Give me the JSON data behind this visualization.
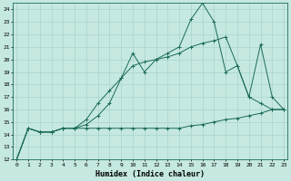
{
  "xlabel": "Humidex (Indice chaleur)",
  "background_color": "#c5e8e0",
  "grid_color": "#a8d4cc",
  "line_color": "#1a6b5a",
  "xlim": [
    -0.3,
    23.3
  ],
  "ylim": [
    12,
    24.5
  ],
  "xticks": [
    0,
    1,
    2,
    3,
    4,
    5,
    6,
    7,
    8,
    9,
    10,
    11,
    12,
    13,
    14,
    15,
    16,
    17,
    18,
    19,
    20,
    21,
    22,
    23
  ],
  "yticks": [
    12,
    13,
    14,
    15,
    16,
    17,
    18,
    19,
    20,
    21,
    22,
    23,
    24
  ],
  "series": [
    {
      "x": [
        0,
        1,
        2,
        3,
        4,
        5,
        6,
        7,
        8,
        9,
        10,
        11,
        12,
        13,
        14,
        15,
        16,
        17,
        18,
        19,
        20,
        21,
        22,
        23
      ],
      "y": [
        12.0,
        14.5,
        14.2,
        14.2,
        14.5,
        14.5,
        14.5,
        14.5,
        14.5,
        14.5,
        14.5,
        14.5,
        14.5,
        14.5,
        14.5,
        14.7,
        14.8,
        15.0,
        15.2,
        15.3,
        15.5,
        15.7,
        16.0,
        16.0
      ]
    },
    {
      "x": [
        0,
        1,
        2,
        3,
        4,
        5,
        6,
        7,
        8,
        9,
        10,
        11,
        12,
        13,
        14,
        15,
        16,
        17,
        18,
        19,
        20,
        21,
        22,
        23
      ],
      "y": [
        12.0,
        14.5,
        14.2,
        14.2,
        14.5,
        14.5,
        15.2,
        16.5,
        17.5,
        18.5,
        19.5,
        19.8,
        20.0,
        20.2,
        20.5,
        21.0,
        21.3,
        21.5,
        21.8,
        19.5,
        17.0,
        16.5,
        16.0,
        16.0
      ]
    },
    {
      "x": [
        0,
        1,
        2,
        3,
        4,
        5,
        6,
        7,
        8,
        9,
        10,
        11,
        12,
        13,
        14,
        15,
        16,
        17,
        18,
        19,
        20,
        21,
        22,
        23
      ],
      "y": [
        12.0,
        14.5,
        14.2,
        14.2,
        14.5,
        14.5,
        14.8,
        15.5,
        16.5,
        18.5,
        20.5,
        19.0,
        20.0,
        20.5,
        21.0,
        23.2,
        24.5,
        23.0,
        19.0,
        19.5,
        17.0,
        21.2,
        17.0,
        16.0
      ]
    }
  ]
}
